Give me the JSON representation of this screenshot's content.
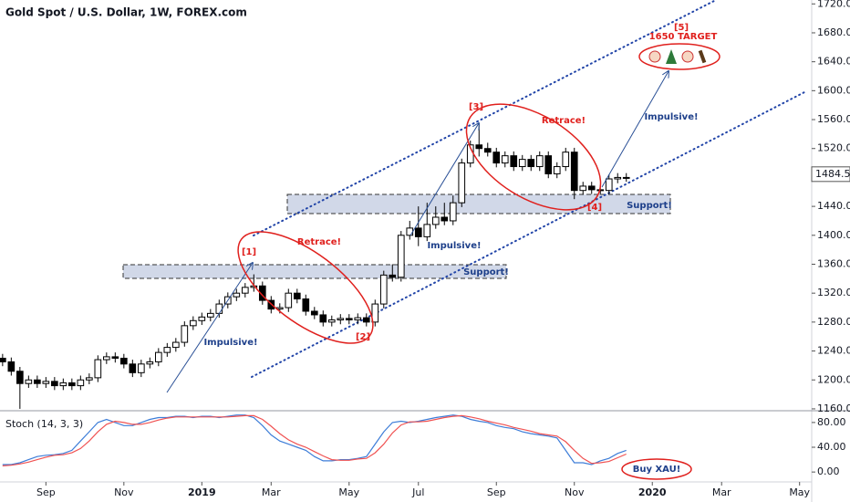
{
  "header": {
    "title": "Gold Spot / U.S. Dollar, 1W, FOREX.com"
  },
  "chart_data": {
    "type": "candlestick",
    "xlim": [
      -0.3,
      93.4
    ],
    "xticks": [
      {
        "value": 5,
        "label": "Sep"
      },
      {
        "value": 14,
        "label": "Nov"
      },
      {
        "value": 23,
        "label": "2019"
      },
      {
        "value": 31,
        "label": "Mar"
      },
      {
        "value": 40,
        "label": "May"
      },
      {
        "value": 48,
        "label": "Jul"
      },
      {
        "value": 57,
        "label": "Sep"
      },
      {
        "value": 66,
        "label": "Nov"
      },
      {
        "value": 75,
        "label": "2020"
      },
      {
        "value": 83,
        "label": "Mar"
      },
      {
        "value": 92,
        "label": "May"
      }
    ],
    "ylim": [
      1157.4,
      1725.4
    ],
    "yticks": [
      {
        "value": 1160,
        "label": "1160.00"
      },
      {
        "value": 1200,
        "label": "1200.00"
      },
      {
        "value": 1240,
        "label": "1240.00"
      },
      {
        "value": 1280,
        "label": "1280.00"
      },
      {
        "value": 1320,
        "label": "1320.00"
      },
      {
        "value": 1360,
        "label": "1360.00"
      },
      {
        "value": 1400,
        "label": "1400.00"
      },
      {
        "value": 1440,
        "label": "1440.00"
      },
      {
        "value": 1480,
        "label": "1480.00"
      },
      {
        "value": 1520,
        "label": "1520.00"
      },
      {
        "value": 1560,
        "label": "1560.00"
      },
      {
        "value": 1600,
        "label": "1600.00"
      },
      {
        "value": 1640,
        "label": "1640.00"
      },
      {
        "value": 1680,
        "label": "1680.00"
      },
      {
        "value": 1720,
        "label": "1720.00"
      }
    ],
    "last_price": 1484.54,
    "up_color": "#ffffff",
    "down_color": "#000000",
    "open": [
      1230,
      1225,
      1212,
      1195,
      1200,
      1195,
      1198,
      1192,
      1196,
      1192,
      1200,
      1203,
      1228,
      1232,
      1230,
      1222,
      1210,
      1222,
      1225,
      1238,
      1245,
      1252,
      1275,
      1282,
      1287,
      1292,
      1305,
      1315,
      1320,
      1328,
      1330,
      1310,
      1298,
      1300,
      1320,
      1312,
      1295,
      1290,
      1280,
      1283,
      1285,
      1283,
      1286,
      1280,
      1305,
      1345,
      1342,
      1400,
      1410,
      1398,
      1415,
      1425,
      1420,
      1445,
      1500,
      1525,
      1520,
      1515,
      1500,
      1510,
      1495,
      1505,
      1495,
      1510,
      1485,
      1495,
      1515,
      1462,
      1468,
      1463,
      1462,
      1478,
      1480
    ],
    "high": [
      1236,
      1231,
      1218,
      1206,
      1206,
      1204,
      1204,
      1202,
      1202,
      1206,
      1209,
      1234,
      1238,
      1238,
      1236,
      1228,
      1228,
      1231,
      1244,
      1251,
      1258,
      1281,
      1288,
      1293,
      1298,
      1311,
      1321,
      1326,
      1334,
      1346,
      1336,
      1316,
      1306,
      1326,
      1326,
      1318,
      1301,
      1296,
      1289,
      1291,
      1291,
      1292,
      1292,
      1311,
      1351,
      1360,
      1406,
      1420,
      1440,
      1445,
      1440,
      1445,
      1455,
      1506,
      1531,
      1555,
      1528,
      1521,
      1516,
      1516,
      1511,
      1511,
      1516,
      1516,
      1501,
      1521,
      1521,
      1474,
      1474,
      1469,
      1484,
      1486,
      1486
    ],
    "low": [
      1219,
      1206,
      1160,
      1189,
      1189,
      1189,
      1186,
      1186,
      1186,
      1186,
      1194,
      1197,
      1222,
      1224,
      1216,
      1204,
      1204,
      1216,
      1219,
      1232,
      1239,
      1246,
      1269,
      1276,
      1281,
      1286,
      1299,
      1309,
      1314,
      1322,
      1304,
      1292,
      1292,
      1294,
      1306,
      1289,
      1284,
      1274,
      1274,
      1277,
      1277,
      1277,
      1274,
      1274,
      1299,
      1336,
      1336,
      1394,
      1385,
      1392,
      1409,
      1414,
      1414,
      1439,
      1494,
      1509,
      1509,
      1494,
      1494,
      1489,
      1489,
      1489,
      1489,
      1479,
      1479,
      1489,
      1450,
      1456,
      1457,
      1456,
      1456,
      1472,
      1474
    ],
    "close": [
      1225,
      1212,
      1195,
      1200,
      1195,
      1198,
      1192,
      1196,
      1192,
      1200,
      1203,
      1228,
      1232,
      1230,
      1222,
      1210,
      1222,
      1225,
      1238,
      1245,
      1252,
      1275,
      1282,
      1287,
      1292,
      1305,
      1315,
      1320,
      1328,
      1330,
      1310,
      1298,
      1300,
      1320,
      1312,
      1295,
      1290,
      1280,
      1283,
      1285,
      1283,
      1286,
      1280,
      1305,
      1345,
      1342,
      1400,
      1410,
      1398,
      1415,
      1425,
      1420,
      1445,
      1500,
      1525,
      1520,
      1515,
      1500,
      1510,
      1495,
      1505,
      1495,
      1510,
      1485,
      1495,
      1515,
      1462,
      1468,
      1463,
      1462,
      1478,
      1480,
      1480
    ],
    "stoch": {
      "title": "Stoch (14, 3, 3)",
      "ylim": [
        -16,
        99
      ],
      "yticks": [
        {
          "value": 0,
          "label": "0.00"
        },
        {
          "value": 40,
          "label": "40.00"
        },
        {
          "value": 80,
          "label": "80.00"
        }
      ],
      "series": [
        {
          "color": "#3d7dd8",
          "values": [
            12,
            12,
            15,
            20,
            25,
            27,
            28,
            30,
            35,
            50,
            65,
            80,
            85,
            80,
            75,
            75,
            80,
            85,
            88,
            88,
            90,
            90,
            88,
            90,
            90,
            88,
            90,
            92,
            92,
            88,
            75,
            60,
            50,
            45,
            40,
            35,
            25,
            18,
            18,
            20,
            20,
            22,
            25,
            45,
            65,
            80,
            82,
            80,
            82,
            85,
            88,
            90,
            92,
            90,
            85,
            82,
            80,
            75,
            72,
            70,
            65,
            62,
            60,
            58,
            55,
            35,
            15,
            15,
            12,
            18,
            22,
            30,
            35
          ]
        },
        {
          "color": "#f05252",
          "values": [
            10,
            11,
            13,
            16,
            20,
            24,
            27,
            28,
            31,
            38,
            50,
            65,
            77,
            82,
            80,
            77,
            77,
            80,
            84,
            87,
            89,
            89,
            89,
            89,
            89,
            89,
            89,
            90,
            91,
            91,
            85,
            74,
            62,
            52,
            45,
            40,
            33,
            26,
            20,
            19,
            19,
            21,
            22,
            31,
            45,
            63,
            76,
            81,
            81,
            82,
            85,
            88,
            90,
            91,
            89,
            86,
            82,
            79,
            76,
            72,
            69,
            66,
            62,
            60,
            58,
            49,
            35,
            22,
            14,
            15,
            17,
            23,
            29
          ]
        }
      ]
    }
  },
  "annotations": [
    "[1]",
    "Retrace!",
    "[2]",
    "Impulsive!",
    "Support!",
    "Impulsive!",
    "[3]",
    "Retrace!",
    "Impulsive!",
    "Support!",
    "[4]",
    "[5]",
    "1650 TARGET",
    "Buy XAU!"
  ]
}
